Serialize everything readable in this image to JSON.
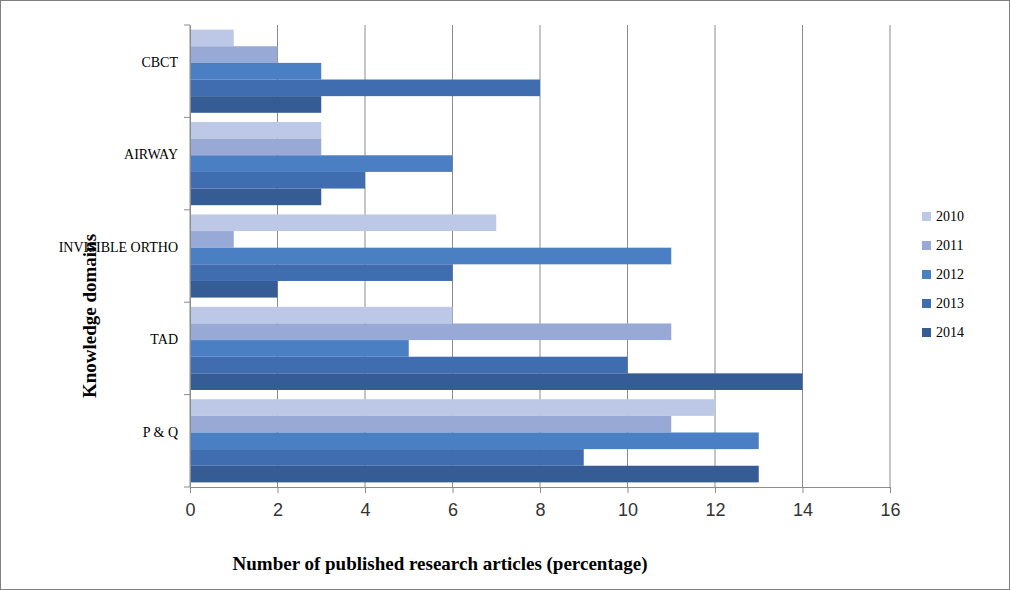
{
  "chart_data": {
    "type": "bar",
    "orientation": "horizontal",
    "x_label": "Number of published research articles (percentage)",
    "y_label": "Knowledge domains",
    "categories": [
      "CBCT",
      "AIRWAY",
      "INVISIBLE ORTHO",
      "TAD",
      "P & Q"
    ],
    "series": [
      {
        "name": "2010",
        "color": "#bcc8e6",
        "values": [
          1,
          3,
          7,
          6,
          12
        ]
      },
      {
        "name": "2011",
        "color": "#98a9d6",
        "values": [
          2,
          3,
          1,
          11,
          11
        ]
      },
      {
        "name": "2012",
        "color": "#4a7fc4",
        "values": [
          3,
          6,
          11,
          5,
          13
        ]
      },
      {
        "name": "2013",
        "color": "#3f6db0",
        "values": [
          8,
          4,
          6,
          10,
          9
        ]
      },
      {
        "name": "2014",
        "color": "#365c96",
        "values": [
          3,
          3,
          2,
          14,
          13
        ]
      }
    ],
    "xlim": [
      0,
      16
    ],
    "xticks": [
      0,
      2,
      4,
      6,
      8,
      10,
      12,
      14,
      16
    ],
    "grid": true,
    "legend": "right"
  }
}
